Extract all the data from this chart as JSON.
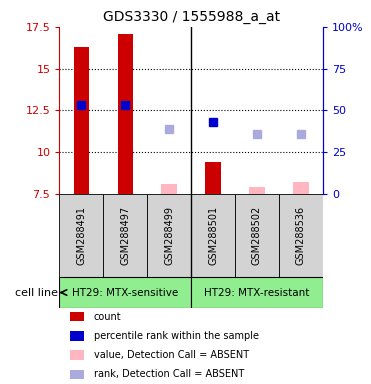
{
  "title": "GDS3330 / 1555988_a_at",
  "samples": [
    "GSM288491",
    "GSM288497",
    "GSM288499",
    "GSM288501",
    "GSM288502",
    "GSM288536"
  ],
  "groups": [
    "HT29: MTX-sensitive",
    "HT29: MTX-resistant"
  ],
  "bar_values": [
    16.3,
    17.1,
    null,
    9.4,
    null,
    null
  ],
  "bar_absent_values": [
    null,
    null,
    8.1,
    null,
    7.9,
    8.2
  ],
  "rank_values": [
    12.8,
    12.8,
    null,
    11.8,
    null,
    null
  ],
  "rank_absent_values": [
    null,
    null,
    11.4,
    null,
    11.1,
    11.1
  ],
  "ylim": [
    7.5,
    17.5
  ],
  "yticks": [
    7.5,
    10.0,
    12.5,
    15.0,
    17.5
  ],
  "ytick_labels": [
    "7.5",
    "10",
    "12.5",
    "15",
    "17.5"
  ],
  "right_ytick_pcts": [
    0,
    25,
    50,
    75,
    100
  ],
  "right_ytick_labels": [
    "0",
    "25",
    "50",
    "75",
    "100%"
  ],
  "bar_color": "#CC0000",
  "bar_absent_color": "#FFB6C1",
  "rank_color": "#0000CC",
  "rank_absent_color": "#AAAADD",
  "bar_width": 0.35,
  "marker_size": 6,
  "cell_line_label": "cell line",
  "legend_items": [
    {
      "label": "count",
      "color": "#CC0000"
    },
    {
      "label": "percentile rank within the sample",
      "color": "#0000CC"
    },
    {
      "label": "value, Detection Call = ABSENT",
      "color": "#FFB6C1"
    },
    {
      "label": "rank, Detection Call = ABSENT",
      "color": "#AAAADD"
    }
  ]
}
